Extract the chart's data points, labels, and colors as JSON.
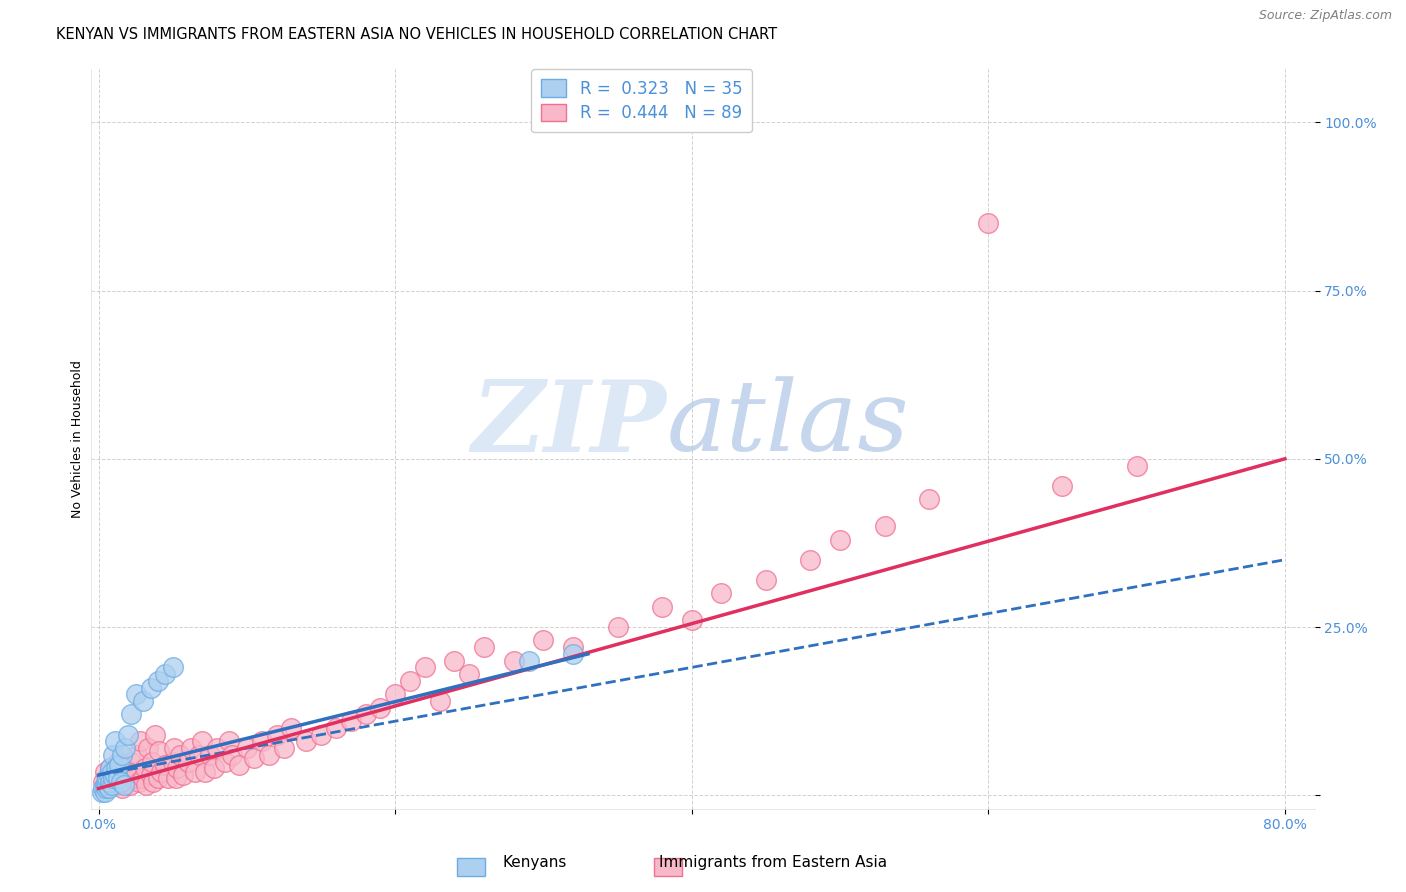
{
  "title": "KENYAN VS IMMIGRANTS FROM EASTERN ASIA NO VEHICLES IN HOUSEHOLD CORRELATION CHART",
  "source": "Source: ZipAtlas.com",
  "ylabel_label": "No Vehicles in Household",
  "xlim": [
    -0.005,
    0.82
  ],
  "ylim": [
    -0.02,
    1.08
  ],
  "ytick_positions": [
    0.0,
    0.25,
    0.5,
    0.75,
    1.0
  ],
  "yticklabels_right": [
    "",
    "25.0%",
    "50.0%",
    "75.0%",
    "100.0%"
  ],
  "xtick_positions": [
    0.0,
    0.2,
    0.4,
    0.6,
    0.8
  ],
  "xticklabels": [
    "0.0%",
    "",
    "",
    "",
    "80.0%"
  ],
  "kenyan_R": 0.323,
  "kenyan_N": 35,
  "eastern_asia_R": 0.444,
  "eastern_asia_N": 89,
  "kenyan_color_edge": "#6aade4",
  "kenyan_color_fill": "#aed0f0",
  "eastern_asia_color_edge": "#f07090",
  "eastern_asia_color_fill": "#f8b8ca",
  "kenyan_line_color": "#3070c0",
  "eastern_asia_line_color": "#e03060",
  "background_color": "#ffffff",
  "grid_color": "#cccccc",
  "title_fontsize": 10.5,
  "axis_label_fontsize": 9,
  "tick_fontsize": 10,
  "legend_fontsize": 12,
  "watermark_color": "#dce8f5",
  "kenyan_x": [
    0.002,
    0.003,
    0.004,
    0.004,
    0.005,
    0.005,
    0.006,
    0.006,
    0.007,
    0.007,
    0.008,
    0.008,
    0.009,
    0.009,
    0.01,
    0.01,
    0.011,
    0.011,
    0.012,
    0.013,
    0.014,
    0.015,
    0.016,
    0.017,
    0.018,
    0.02,
    0.022,
    0.025,
    0.03,
    0.035,
    0.04,
    0.045,
    0.05,
    0.29,
    0.32
  ],
  "kenyan_y": [
    0.005,
    0.01,
    0.005,
    0.015,
    0.01,
    0.02,
    0.015,
    0.025,
    0.01,
    0.03,
    0.02,
    0.04,
    0.015,
    0.035,
    0.025,
    0.06,
    0.03,
    0.08,
    0.04,
    0.025,
    0.045,
    0.02,
    0.06,
    0.015,
    0.07,
    0.09,
    0.12,
    0.15,
    0.14,
    0.16,
    0.17,
    0.18,
    0.19,
    0.2,
    0.21
  ],
  "eastern_asia_x": [
    0.003,
    0.004,
    0.005,
    0.006,
    0.007,
    0.008,
    0.01,
    0.011,
    0.012,
    0.013,
    0.015,
    0.016,
    0.017,
    0.018,
    0.02,
    0.021,
    0.022,
    0.023,
    0.025,
    0.026,
    0.027,
    0.028,
    0.03,
    0.031,
    0.032,
    0.033,
    0.035,
    0.036,
    0.037,
    0.038,
    0.04,
    0.041,
    0.042,
    0.045,
    0.047,
    0.05,
    0.051,
    0.052,
    0.053,
    0.055,
    0.057,
    0.06,
    0.062,
    0.065,
    0.068,
    0.07,
    0.072,
    0.075,
    0.078,
    0.08,
    0.085,
    0.088,
    0.09,
    0.095,
    0.1,
    0.105,
    0.11,
    0.115,
    0.12,
    0.125,
    0.13,
    0.14,
    0.15,
    0.16,
    0.17,
    0.18,
    0.19,
    0.2,
    0.21,
    0.22,
    0.23,
    0.24,
    0.25,
    0.26,
    0.28,
    0.3,
    0.32,
    0.35,
    0.38,
    0.4,
    0.42,
    0.45,
    0.48,
    0.5,
    0.53,
    0.56,
    0.6,
    0.65,
    0.7
  ],
  "eastern_asia_y": [
    0.02,
    0.035,
    0.01,
    0.015,
    0.025,
    0.04,
    0.02,
    0.03,
    0.015,
    0.05,
    0.025,
    0.01,
    0.04,
    0.02,
    0.03,
    0.015,
    0.05,
    0.025,
    0.035,
    0.06,
    0.02,
    0.08,
    0.025,
    0.04,
    0.015,
    0.07,
    0.03,
    0.05,
    0.02,
    0.09,
    0.025,
    0.065,
    0.035,
    0.045,
    0.025,
    0.05,
    0.07,
    0.025,
    0.04,
    0.06,
    0.03,
    0.05,
    0.07,
    0.035,
    0.06,
    0.08,
    0.035,
    0.06,
    0.04,
    0.07,
    0.05,
    0.08,
    0.06,
    0.045,
    0.07,
    0.055,
    0.08,
    0.06,
    0.09,
    0.07,
    0.1,
    0.08,
    0.09,
    0.1,
    0.11,
    0.12,
    0.13,
    0.15,
    0.17,
    0.19,
    0.14,
    0.2,
    0.18,
    0.22,
    0.2,
    0.23,
    0.22,
    0.25,
    0.28,
    0.26,
    0.3,
    0.32,
    0.35,
    0.38,
    0.4,
    0.44,
    0.85,
    0.46,
    0.49
  ],
  "kenyan_line_start_x": 0.0,
  "kenyan_line_end_x": 0.8,
  "kenyan_line_start_y": 0.03,
  "kenyan_line_end_y": 0.35,
  "eastern_asia_line_start_x": 0.0,
  "eastern_asia_line_end_x": 0.8,
  "eastern_asia_line_start_y": 0.01,
  "eastern_asia_line_end_y": 0.5
}
